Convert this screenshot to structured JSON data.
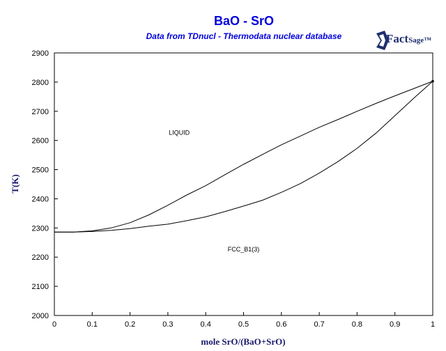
{
  "colors": {
    "title": "#0000dd",
    "subtitle": "#0000dd",
    "axis_label": "#1a1a6e",
    "curve": "#000000",
    "logo": "#1f2f6e"
  },
  "logo": {
    "icon": "factsage-logo-icon",
    "text_main": "Fact",
    "text_small": "Sage™"
  },
  "chart_data": {
    "type": "line",
    "title": "BaO - SrO",
    "subtitle": "Data from TDnucl - Thermodata nuclear database",
    "xlabel": "mole SrO/(BaO+SrO)",
    "ylabel": "T(K)",
    "xlim": [
      0,
      1
    ],
    "ylim": [
      2000,
      2900
    ],
    "xticks": [
      "0",
      "0.1",
      "0.2",
      "0.3",
      "0.4",
      "0.5",
      "0.6",
      "0.7",
      "0.8",
      "0.9",
      "1"
    ],
    "yticks": [
      "2000",
      "2100",
      "2200",
      "2300",
      "2400",
      "2500",
      "2600",
      "2700",
      "2800",
      "2900"
    ],
    "grid": false,
    "series": [
      {
        "x": [
          0,
          0.05,
          0.1,
          0.15,
          0.2,
          0.25,
          0.3,
          0.35,
          0.4,
          0.45,
          0.5,
          0.55,
          0.6,
          0.65,
          0.7,
          0.75,
          0.8,
          0.85,
          0.9,
          0.95,
          1
        ],
        "y": [
          2286,
          2286,
          2290,
          2300,
          2318,
          2345,
          2378,
          2413,
          2445,
          2482,
          2518,
          2552,
          2585,
          2615,
          2645,
          2672,
          2700,
          2727,
          2753,
          2778,
          2803
        ]
      },
      {
        "x": [
          0,
          0.05,
          0.1,
          0.15,
          0.2,
          0.25,
          0.3,
          0.35,
          0.4,
          0.45,
          0.5,
          0.55,
          0.6,
          0.65,
          0.7,
          0.75,
          0.8,
          0.85,
          0.9,
          0.95,
          1
        ],
        "y": [
          2286,
          2286,
          2288,
          2292,
          2298,
          2306,
          2313,
          2325,
          2338,
          2356,
          2375,
          2395,
          2422,
          2452,
          2488,
          2528,
          2573,
          2625,
          2685,
          2745,
          2803
        ]
      }
    ],
    "annotations": [
      {
        "text": "LIQUID",
        "x": 0.33,
        "y": 2620
      },
      {
        "text": "FCC_B1(3)",
        "x": 0.5,
        "y": 2220
      }
    ]
  }
}
